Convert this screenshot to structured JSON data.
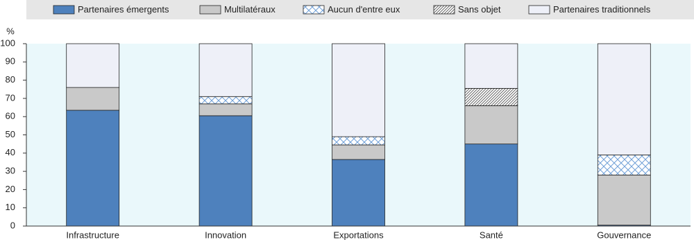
{
  "chart_data": {
    "type": "stacked-bar",
    "y_label": "%",
    "categories": [
      "Infrastructure",
      "Innovation",
      "Exportations",
      "Santé",
      "Gouvernance"
    ],
    "series": [
      {
        "name": "Partenaires émergents",
        "color": "#4e81bd",
        "values": [
          63.5,
          60.5,
          36.5,
          45,
          0.5
        ]
      },
      {
        "name": "Multilatéraux",
        "color": "#c9c9c9",
        "values": [
          12.5,
          6.5,
          8,
          21,
          27.5
        ]
      },
      {
        "name": "Aucun d'entre eux",
        "color": "#6fa0d8",
        "pattern": "crosshatch",
        "values": [
          0,
          4,
          4.5,
          0,
          11
        ]
      },
      {
        "name": "Sans objet",
        "color": "#555555",
        "pattern": "diagonal",
        "values": [
          0,
          0,
          0,
          9.5,
          0
        ]
      },
      {
        "name": "Partenaires traditionnels",
        "color": "#eef0f8",
        "values": [
          24,
          29,
          51,
          24.5,
          61
        ]
      }
    ],
    "ylim": [
      0,
      100
    ],
    "yticks": [
      0,
      10,
      20,
      30,
      40,
      50,
      60,
      70,
      80,
      90,
      100
    ],
    "legend": "top"
  }
}
